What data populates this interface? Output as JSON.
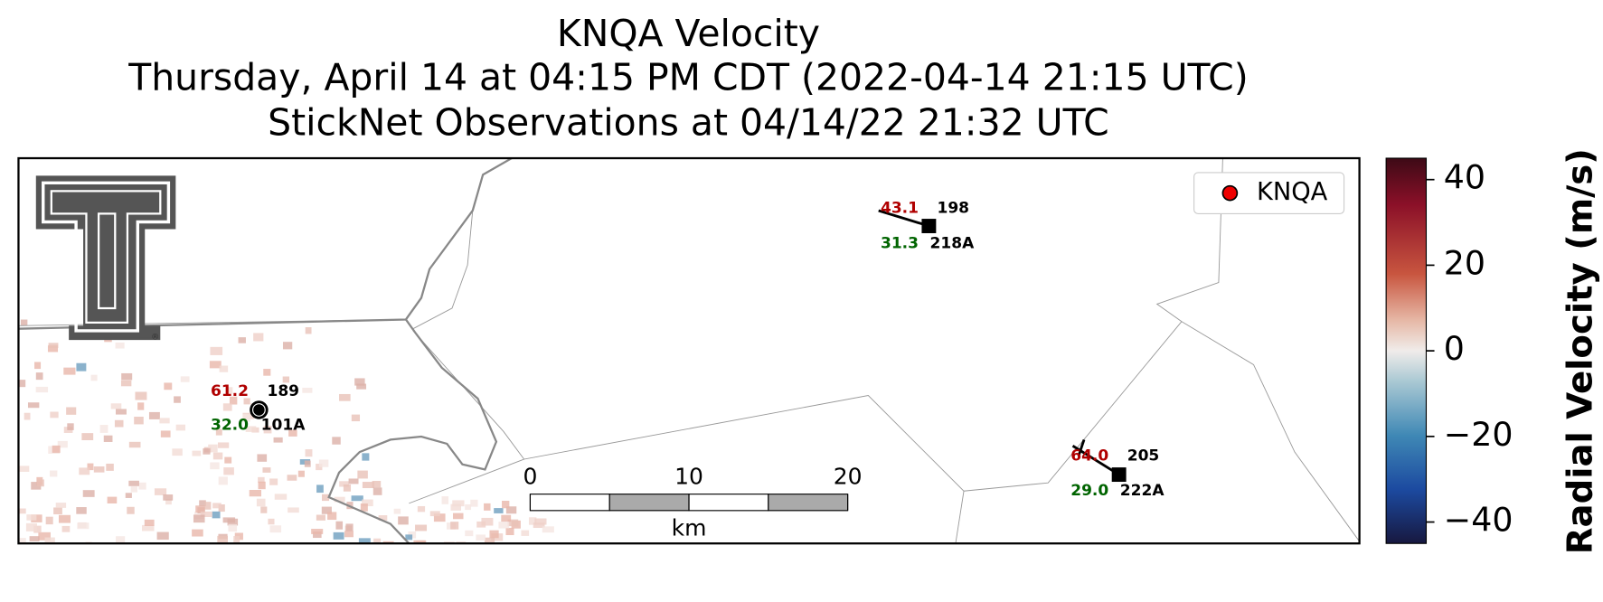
{
  "header": {
    "title": "KNQA Velocity",
    "subtitle": "Thursday, April 14 at 04:15 PM CDT (2022-04-14 21:15 UTC)",
    "observations": "StickNet Observations at 04/14/22 21:32 UTC"
  },
  "legend": {
    "label": "KNQA"
  },
  "stations": [
    {
      "id": "101A",
      "direction": "189",
      "gust": "61.2",
      "speed": "32.0"
    },
    {
      "id": "218A",
      "direction": "198",
      "gust": "43.1",
      "speed": "31.3"
    },
    {
      "id": "222A",
      "direction": "205",
      "gust": "64.0",
      "speed": "29.0"
    }
  ],
  "scale_bar": {
    "lim": [
      0,
      20
    ],
    "ticks": [
      0,
      10,
      20
    ],
    "unit": "km"
  },
  "colorbar": {
    "label": "Radial Velocity (m/s)",
    "lim": [
      -45,
      45
    ],
    "ticks": [
      40,
      20,
      0,
      {
        "value": -20,
        "label": "−20"
      },
      {
        "value": -40,
        "label": "−40"
      }
    ]
  }
}
